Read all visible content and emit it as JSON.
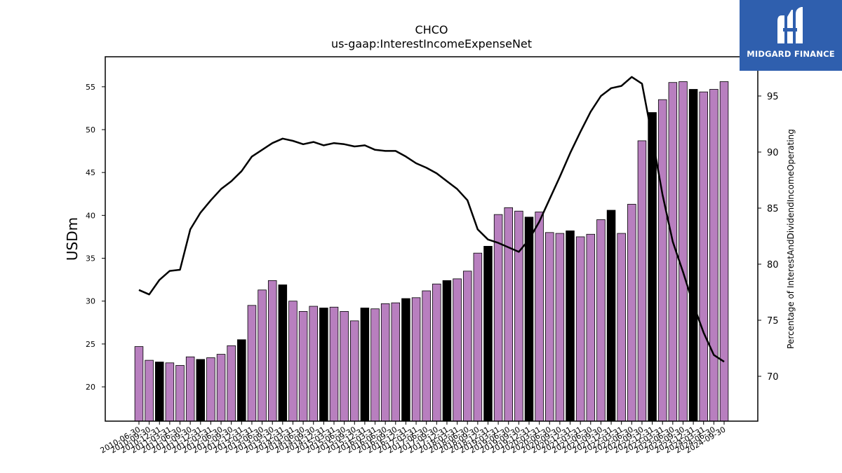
{
  "logo": {
    "text": "MIDGARD FINANCE",
    "background": "#2f5fae",
    "icon": "midgard-logo-icon"
  },
  "chart_data": {
    "type": "bar",
    "title": "CHCO",
    "subtitle": "us-gaap:InterestIncomeExpenseNet",
    "ylabel": "USDm",
    "y2label": "Percentage of InterestAndDividendIncomeOperating",
    "ylim": [
      16,
      58.5
    ],
    "y2lim": [
      66,
      98.5
    ],
    "yticks": [
      20,
      25,
      30,
      35,
      40,
      45,
      50,
      55
    ],
    "y2ticks": [
      70,
      75,
      80,
      85,
      90,
      95
    ],
    "colors": {
      "bar": "#b87fbf",
      "bar_highlight": "#000000",
      "line": "#000000"
    },
    "categories": [
      "2010-06-30",
      "2010-09-30",
      "2010-12-31",
      "2011-03-31",
      "2011-06-30",
      "2011-09-30",
      "2011-12-31",
      "2012-03-31",
      "2012-06-30",
      "2012-09-30",
      "2012-12-31",
      "2013-03-31",
      "2013-06-30",
      "2013-09-30",
      "2013-12-31",
      "2014-03-31",
      "2014-06-30",
      "2014-09-30",
      "2014-12-31",
      "2015-03-31",
      "2015-06-30",
      "2015-09-30",
      "2015-12-31",
      "2016-03-31",
      "2016-06-30",
      "2016-09-30",
      "2016-12-31",
      "2017-03-31",
      "2017-06-30",
      "2017-09-30",
      "2017-12-31",
      "2018-03-31",
      "2018-06-30",
      "2018-09-30",
      "2018-12-31",
      "2019-03-31",
      "2019-06-30",
      "2019-09-30",
      "2019-12-31",
      "2020-03-31",
      "2020-06-30",
      "2020-09-30",
      "2020-12-31",
      "2021-03-31",
      "2021-06-30",
      "2021-09-30",
      "2021-12-31",
      "2022-03-31",
      "2022-06-30",
      "2022-09-30",
      "2022-12-31",
      "2023-03-31",
      "2023-06-30",
      "2023-09-30",
      "2023-12-31",
      "2024-03-31",
      "2024-06-30",
      "2024-09-30"
    ],
    "tick_labels": [
      "2010-06-30",
      "2010-09-30",
      "2010-12-31",
      "2011-03-31",
      "2011-06-30",
      "2011-09-30",
      "2011-12-31",
      "2012-03-31",
      "2012-06-30",
      "2012-09-30",
      "2012-12-31",
      "2013-03-31",
      "2013-06-30",
      "2013-09-30",
      "2013-12-31",
      "2014-03-31",
      "2014-06-30",
      "2014-09-30",
      "2014-12-31",
      "2015-03-31",
      "2015-06-30",
      "2015-09-30",
      "2015-12-31",
      "2016-03-31",
      "2016-06-30",
      "2016-09-30",
      "2016-12-31",
      "2017-03-31",
      "2017-06-30",
      "2017-09-30",
      "2017-12-31",
      "2018-03-31",
      "2018-06-30",
      "2018-09-30",
      "2018-12-31",
      "2019-03-31",
      "2019-06-30",
      "2019-09-30",
      "2019-12-31",
      "2020-03-31",
      "2020-06-30",
      "2020-09-30",
      "2020-12-31",
      "2021-03-31",
      "2021-06-30",
      "2021-09-30",
      "2021-12-31",
      "2022-03-31",
      "2022-06-30",
      "2022-09-30",
      "2022-12-31",
      "2023-03-31",
      "2023-06-30",
      "2023-09-30",
      "2023-12-31",
      "2024-03-31",
      "2024-06-30",
      "2024-09-30"
    ],
    "values": [
      24.7,
      23.1,
      22.9,
      22.8,
      22.5,
      23.5,
      23.2,
      23.4,
      23.8,
      24.8,
      25.5,
      29.5,
      31.3,
      32.4,
      31.9,
      30.0,
      28.8,
      29.4,
      29.2,
      29.3,
      28.8,
      27.7,
      29.2,
      29.1,
      29.7,
      29.8,
      30.3,
      30.4,
      31.2,
      32.0,
      32.4,
      32.6,
      33.5,
      35.6,
      36.4,
      40.1,
      40.9,
      40.5,
      39.8,
      40.4,
      38.0,
      37.9,
      38.2,
      37.5,
      37.8,
      39.5,
      40.6,
      37.9,
      41.3,
      48.7,
      52.0,
      53.5,
      55.5,
      55.6,
      54.7,
      54.4,
      54.7,
      55.6
    ],
    "highlight": [
      false,
      false,
      true,
      false,
      false,
      false,
      true,
      false,
      false,
      false,
      true,
      false,
      false,
      false,
      true,
      false,
      false,
      false,
      true,
      false,
      false,
      false,
      true,
      false,
      false,
      false,
      true,
      false,
      false,
      false,
      true,
      false,
      false,
      false,
      true,
      false,
      false,
      false,
      true,
      false,
      false,
      false,
      true,
      false,
      false,
      false,
      true,
      false,
      false,
      false,
      true,
      false,
      false,
      false,
      true,
      false,
      false,
      false
    ],
    "series": [
      {
        "values": [
          77.7,
          77.3,
          78.6,
          79.4,
          79.5,
          83.1,
          84.6,
          85.7,
          86.7,
          87.4,
          88.3,
          89.6,
          90.2,
          90.8,
          91.2,
          91.0,
          90.7,
          90.9,
          90.6,
          90.8,
          90.7,
          90.5,
          90.6,
          90.2,
          90.1,
          90.1,
          89.6,
          89.0,
          88.6,
          88.1,
          87.4,
          86.7,
          85.7,
          83.1,
          82.2,
          81.9,
          81.5,
          81.1,
          82.2,
          83.8,
          85.8,
          87.8,
          89.9,
          91.8,
          93.6,
          95.0,
          95.7,
          95.9,
          96.7,
          96.1,
          91.3,
          86.2,
          82.0,
          79.3,
          76.4,
          73.9,
          71.9,
          71.3
        ]
      }
    ]
  }
}
